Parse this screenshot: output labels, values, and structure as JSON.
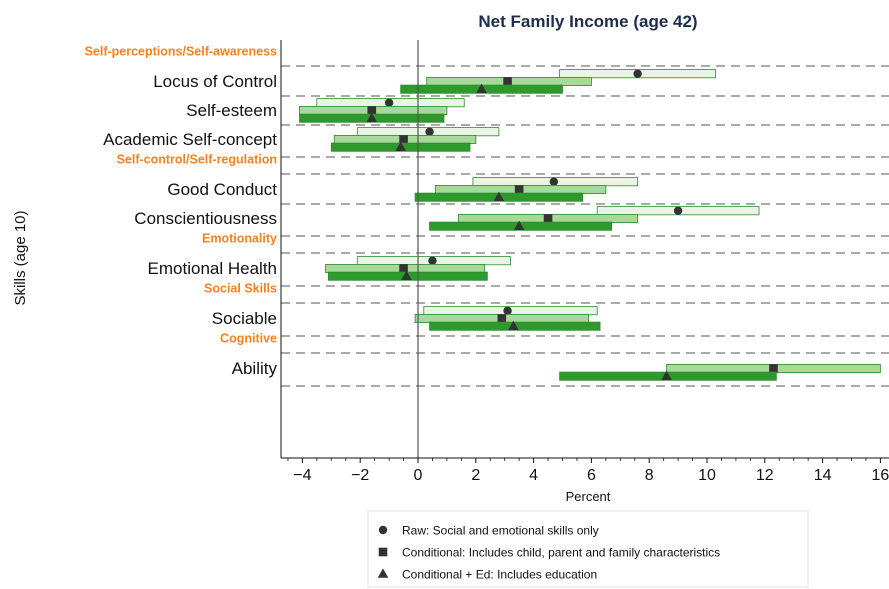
{
  "chart_data": {
    "type": "range",
    "title": "Net Family Income (age 42)",
    "xlabel": "Percent",
    "ylabel": "Skills (age 10)",
    "xlim": [
      -4.5,
      16.2
    ],
    "xticks": [
      -4,
      -2,
      0,
      2,
      4,
      6,
      8,
      10,
      12,
      14,
      16
    ],
    "xtick_labels": [
      "−4",
      "−2",
      "0",
      "2",
      "4",
      "6",
      "8",
      "10",
      "12",
      "14",
      "16"
    ],
    "series": [
      {
        "name": "Raw: Social and emotional skills only",
        "marker": "circle",
        "color": "#e8f5e4"
      },
      {
        "name": "Conditional: Includes child, parent and family characteristics",
        "marker": "square",
        "color": "#a6d99a"
      },
      {
        "name": "Conditional + Ed: Includes education",
        "marker": "triangle",
        "color": "#2e9a2e"
      }
    ],
    "groups": [
      {
        "label": "Self-perceptions/Self-awareness",
        "items": [
          {
            "label": "Locus of Control",
            "estimates": [
              {
                "point": 7.6,
                "low": 4.9,
                "high": 10.3
              },
              {
                "point": 3.1,
                "low": 0.3,
                "high": 6.0
              },
              {
                "point": 2.2,
                "low": -0.6,
                "high": 5.0
              }
            ]
          },
          {
            "label": "Self-esteem",
            "estimates": [
              {
                "point": -1.0,
                "low": -3.5,
                "high": 1.6
              },
              {
                "point": -1.6,
                "low": -4.1,
                "high": 1.0
              },
              {
                "point": -1.6,
                "low": -4.1,
                "high": 0.9
              }
            ]
          },
          {
            "label": "Academic Self-concept",
            "estimates": [
              {
                "point": 0.4,
                "low": -2.1,
                "high": 2.8
              },
              {
                "point": -0.5,
                "low": -2.9,
                "high": 2.0
              },
              {
                "point": -0.6,
                "low": -3.0,
                "high": 1.8
              }
            ]
          }
        ]
      },
      {
        "label": "Self-control/Self-regulation",
        "items": [
          {
            "label": "Good Conduct",
            "estimates": [
              {
                "point": 4.7,
                "low": 1.9,
                "high": 7.6
              },
              {
                "point": 3.5,
                "low": 0.6,
                "high": 6.5
              },
              {
                "point": 2.8,
                "low": -0.1,
                "high": 5.7
              }
            ]
          },
          {
            "label": "Conscientiousness",
            "estimates": [
              {
                "point": 9.0,
                "low": 6.2,
                "high": 11.8
              },
              {
                "point": 4.5,
                "low": 1.4,
                "high": 7.6
              },
              {
                "point": 3.5,
                "low": 0.4,
                "high": 6.7
              }
            ]
          }
        ]
      },
      {
        "label": "Emotionality",
        "items": [
          {
            "label": "Emotional Health",
            "estimates": [
              {
                "point": 0.5,
                "low": -2.1,
                "high": 3.2
              },
              {
                "point": -0.5,
                "low": -3.2,
                "high": 2.3
              },
              {
                "point": -0.4,
                "low": -3.1,
                "high": 2.4
              }
            ]
          }
        ]
      },
      {
        "label": "Social Skills",
        "items": [
          {
            "label": "Sociable",
            "estimates": [
              {
                "point": 3.1,
                "low": 0.2,
                "high": 6.2
              },
              {
                "point": 2.9,
                "low": -0.1,
                "high": 5.9
              },
              {
                "point": 3.3,
                "low": 0.4,
                "high": 6.3
              }
            ]
          }
        ]
      },
      {
        "label": "Cognitive",
        "items": [
          {
            "label": "Ability",
            "estimates": [
              {
                "point": null,
                "low": null,
                "high": null
              },
              {
                "point": 12.3,
                "low": 8.6,
                "high": 16.0
              },
              {
                "point": 8.6,
                "low": 4.9,
                "high": 12.4
              }
            ]
          }
        ]
      }
    ]
  }
}
